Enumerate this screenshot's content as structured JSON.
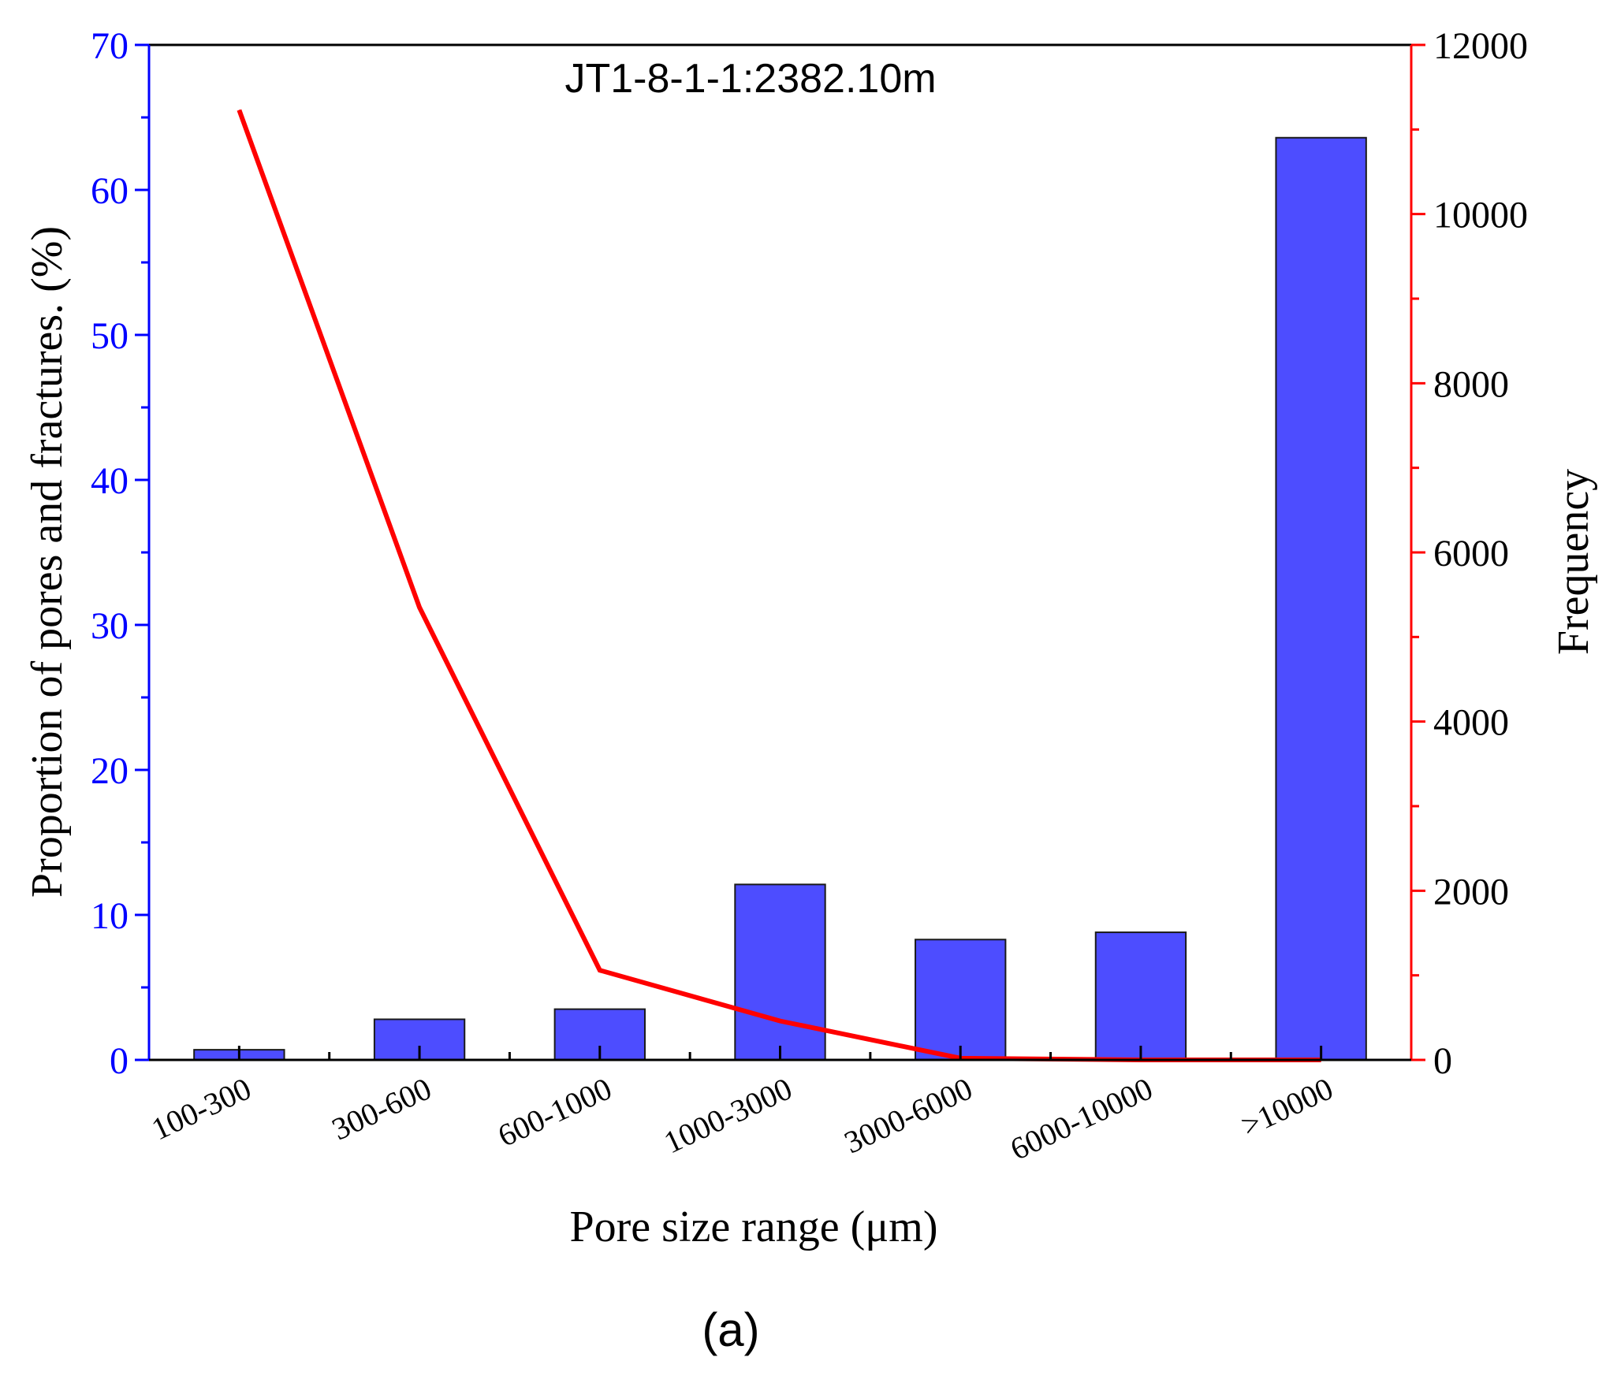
{
  "chart_data": {
    "type": "bar",
    "title": "JT1-8-1-1:2382.10m",
    "categories": [
      "100-300",
      "300-600",
      "600-1000",
      "1000-3000",
      "3000-6000",
      "6000-10000",
      ">10000"
    ],
    "xlabel": "Pore size range (μm)",
    "series": [
      {
        "name": "Proportion of pores and fractures",
        "type": "bar",
        "axis": "left",
        "values": [
          0.7,
          2.8,
          3.5,
          12.1,
          8.3,
          8.8,
          63.6
        ]
      },
      {
        "name": "Frequency",
        "type": "line",
        "axis": "right",
        "values": [
          11230,
          5350,
          1060,
          460,
          20,
          0,
          0
        ]
      }
    ],
    "ylabel_left": "Proportion of pores and fractures. (%)",
    "ylim_left": [
      0,
      70
    ],
    "yticks_left": [
      0,
      10,
      20,
      30,
      40,
      50,
      60,
      70
    ],
    "ylabel_right": "Frequency",
    "ylim_right": [
      0,
      12000
    ],
    "yticks_right": [
      0,
      2000,
      4000,
      6000,
      8000,
      10000,
      12000
    ],
    "colors": {
      "bar_fill": "#4d4dff",
      "bar_stroke": "#1a1a1a",
      "line": "#ff0000",
      "left_axis": "#0000ff",
      "right_axis": "#ff0000",
      "text": "#000000"
    },
    "grid": false
  },
  "caption": "(a)"
}
